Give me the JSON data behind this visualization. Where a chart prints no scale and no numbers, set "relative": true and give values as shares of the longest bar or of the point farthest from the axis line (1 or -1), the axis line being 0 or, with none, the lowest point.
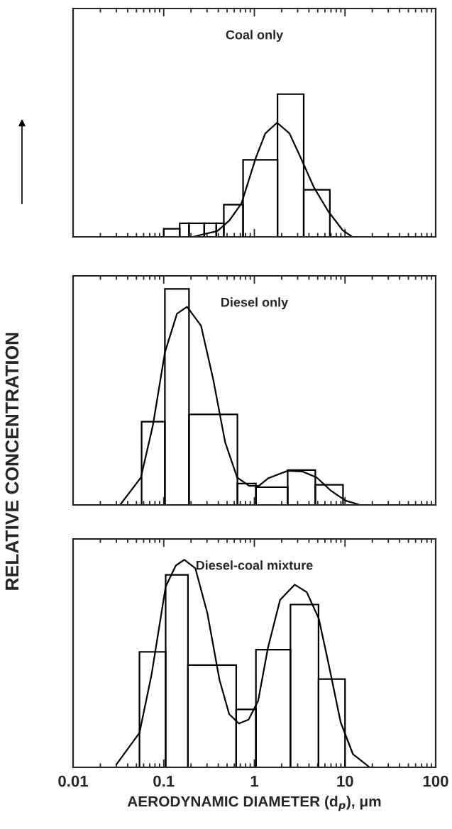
{
  "chart_data": [
    {
      "type": "histogram",
      "title": "Coal only",
      "relative": true,
      "log": "x",
      "color": "#000000",
      "tick_labels": false,
      "bins": [
        0.1,
        0.15,
        0.19,
        0.28,
        0.38,
        0.46,
        0.75,
        1.8,
        3.5,
        6.8
      ],
      "values": [
        0.056,
        0.095,
        0.095,
        0.095,
        0.095,
        0.225,
        0.54,
        1,
        0.33
      ],
      "series": [
        {
          "type": "line",
          "color": "#000000",
          "x": [
            0.21,
            0.28,
            0.39,
            0.53,
            0.72,
            1.04,
            1.32,
            1.78,
            2.44,
            3.32,
            4.51,
            6.51,
            9.4,
            12.0
          ],
          "values": [
            0,
            0.02,
            0.04,
            0.115,
            0.234,
            0.556,
            0.725,
            0.8,
            0.725,
            0.54,
            0.35,
            0.18,
            0.047,
            0
          ]
        }
      ],
      "xlim": [
        0.01,
        100
      ],
      "xticks": [
        0.01,
        0.1,
        1,
        10,
        100
      ]
    },
    {
      "type": "histogram",
      "title": "Diesel only",
      "relative": true,
      "log": "x",
      "color": "#000000",
      "tick_labels": false,
      "ylabel": "RELATIVE CONCENTRATION",
      "bins": [
        0.057,
        0.103,
        0.19,
        0.65,
        1.04,
        2.33,
        4.7,
        9.5
      ],
      "values": [
        0.385,
        1,
        0.419,
        0.099,
        0.082,
        0.161,
        0.093
      ],
      "series": [
        {
          "type": "line",
          "color": "#000000",
          "x": [
            0.033,
            0.056,
            0.076,
            0.103,
            0.14,
            0.181,
            0.258,
            0.351,
            0.476,
            0.646,
            0.877,
            1.12,
            1.43,
            2.33,
            3.37,
            4.86,
            7.02,
            10.1,
            14.6
          ],
          "values": [
            0,
            0.127,
            0.369,
            0.706,
            0.885,
            0.917,
            0.829,
            0.582,
            0.29,
            0.127,
            0.088,
            0.088,
            0.124,
            0.158,
            0.155,
            0.127,
            0.065,
            0.02,
            0
          ]
        }
      ],
      "xlim": [
        0.01,
        100
      ],
      "xticks": [
        0.01,
        0.1,
        1,
        10,
        100
      ]
    },
    {
      "type": "histogram",
      "title": "Diesel-coal mixture",
      "relative": true,
      "log": "x",
      "color": "#000000",
      "tick_labels": "x",
      "xlabel": "AERODYNAMIC DIAMETER (d$_{p}$), μm",
      "bins": [
        0.054,
        0.105,
        0.185,
        0.63,
        1.04,
        2.5,
        5.1,
        10
      ],
      "values": [
        0.556,
        0.927,
        0.492,
        0.279,
        0.567,
        0.784,
        0.425
      ],
      "series": [
        {
          "type": "line",
          "color": "#000000",
          "x": [
            0.03,
            0.054,
            0.0735,
            0.105,
            0.136,
            0.169,
            0.223,
            0.303,
            0.412,
            0.527,
            0.675,
            0.863,
            1.1,
            1.41,
            1.92,
            2.78,
            3.78,
            5.14,
            6.58,
            8.95,
            12.2,
            18.7
          ],
          "values": [
            0.013,
            0.166,
            0.448,
            0.87,
            0.972,
            1,
            0.959,
            0.742,
            0.422,
            0.256,
            0.211,
            0.23,
            0.32,
            0.575,
            0.806,
            0.88,
            0.844,
            0.716,
            0.499,
            0.217,
            0.064,
            0
          ]
        }
      ],
      "xlim": [
        0.01,
        100
      ],
      "xticks": [
        0.01,
        0.1,
        1,
        10,
        100
      ]
    }
  ]
}
